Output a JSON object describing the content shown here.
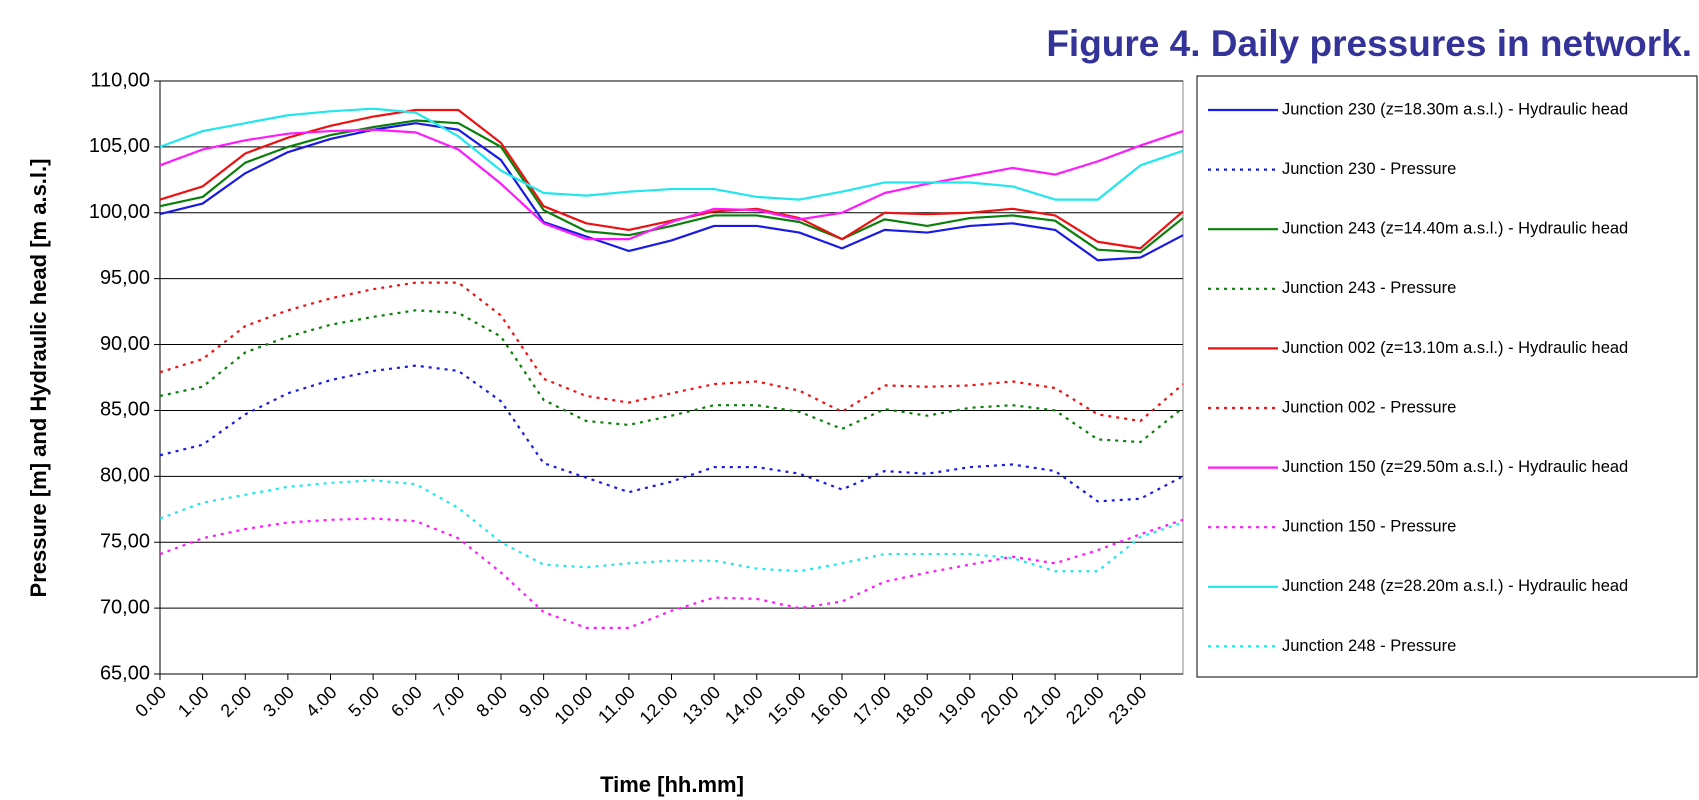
{
  "chart_data": {
    "type": "line",
    "title": "Figure 4. Daily pressures in network.",
    "x_label": "Time [hh.mm]",
    "y_label": "Pressure [m] and Hydraulic head  [m a.s.l.]",
    "x": [
      0,
      1,
      2,
      3,
      4,
      5,
      6,
      7,
      8,
      9,
      10,
      11,
      12,
      13,
      14,
      15,
      16,
      17,
      18,
      19,
      20,
      21,
      22,
      23,
      24
    ],
    "xlim": [
      0,
      24
    ],
    "xticks": [
      {
        "value": 0,
        "label": "0.00"
      },
      {
        "value": 1,
        "label": "1.00"
      },
      {
        "value": 2,
        "label": "2.00"
      },
      {
        "value": 3,
        "label": "3.00"
      },
      {
        "value": 4,
        "label": "4.00"
      },
      {
        "value": 5,
        "label": "5.00"
      },
      {
        "value": 6,
        "label": "6.00"
      },
      {
        "value": 7,
        "label": "7.00"
      },
      {
        "value": 8,
        "label": "8.00"
      },
      {
        "value": 9,
        "label": "9.00"
      },
      {
        "value": 10,
        "label": "10.00"
      },
      {
        "value": 11,
        "label": "11.00"
      },
      {
        "value": 12,
        "label": "12.00"
      },
      {
        "value": 13,
        "label": "13.00"
      },
      {
        "value": 14,
        "label": "14.00"
      },
      {
        "value": 15,
        "label": "15.00"
      },
      {
        "value": 16,
        "label": "16.00"
      },
      {
        "value": 17,
        "label": "17.00"
      },
      {
        "value": 18,
        "label": "18.00"
      },
      {
        "value": 19,
        "label": "19.00"
      },
      {
        "value": 20,
        "label": "20.00"
      },
      {
        "value": 21,
        "label": "21.00"
      },
      {
        "value": 22,
        "label": "22.00"
      },
      {
        "value": 23,
        "label": "23.00"
      }
    ],
    "ylim": [
      65,
      110
    ],
    "yticks": [
      {
        "value": 65,
        "label": "65,00"
      },
      {
        "value": 70,
        "label": "70,00"
      },
      {
        "value": 75,
        "label": "75,00"
      },
      {
        "value": 80,
        "label": "80,00"
      },
      {
        "value": 85,
        "label": "85,00"
      },
      {
        "value": 90,
        "label": "90,00"
      },
      {
        "value": 95,
        "label": "95,00"
      },
      {
        "value": 100,
        "label": "100,00"
      },
      {
        "value": 105,
        "label": "105,00"
      },
      {
        "value": 110,
        "label": "110,00"
      }
    ],
    "grid": true,
    "legend": "right",
    "series": [
      {
        "name": "Junction 230 (z=18.30m a.s.l.) - Hydraulic head",
        "color": "#1a1ae6",
        "style": "solid",
        "values": [
          99.9,
          100.7,
          103.0,
          104.6,
          105.6,
          106.3,
          106.8,
          106.3,
          104.0,
          99.3,
          98.2,
          97.1,
          97.9,
          99.0,
          99.0,
          98.5,
          97.3,
          98.7,
          98.5,
          99.0,
          99.2,
          98.7,
          96.4,
          96.6,
          98.3
        ]
      },
      {
        "name": "Junction 230 - Pressure",
        "color": "#1a1ae6",
        "style": "dotted",
        "values": [
          81.6,
          82.4,
          84.7,
          86.3,
          87.3,
          88.0,
          88.4,
          88.0,
          85.7,
          81.0,
          79.9,
          78.8,
          79.6,
          80.7,
          80.7,
          80.2,
          79.0,
          80.4,
          80.2,
          80.7,
          80.9,
          80.4,
          78.1,
          78.3,
          80.0
        ]
      },
      {
        "name": "Junction 243 (z=14.40m a.s.l.) - Hydraulic head",
        "color": "#0a800a",
        "style": "solid",
        "values": [
          100.5,
          101.2,
          103.8,
          105.0,
          105.9,
          106.5,
          107.0,
          106.8,
          105.0,
          100.2,
          98.6,
          98.3,
          99.0,
          99.8,
          99.8,
          99.3,
          98.0,
          99.5,
          99.0,
          99.6,
          99.8,
          99.4,
          97.2,
          97.0,
          99.6
        ]
      },
      {
        "name": "Junction 243 - Pressure",
        "color": "#0a800a",
        "style": "dotted",
        "values": [
          86.1,
          86.8,
          89.4,
          90.6,
          91.5,
          92.1,
          92.6,
          92.4,
          90.6,
          85.8,
          84.2,
          83.9,
          84.6,
          85.4,
          85.4,
          84.9,
          83.6,
          85.1,
          84.6,
          85.2,
          85.4,
          85.0,
          82.8,
          82.6,
          85.2
        ]
      },
      {
        "name": "Junction 002 (z=13.10m a.s.l.) - Hydraulic head",
        "color": "#ee1111",
        "style": "solid",
        "values": [
          101.0,
          102.0,
          104.5,
          105.7,
          106.6,
          107.3,
          107.8,
          107.8,
          105.3,
          100.5,
          99.2,
          98.7,
          99.4,
          100.1,
          100.3,
          99.6,
          98.0,
          100.0,
          99.9,
          100.0,
          100.3,
          99.8,
          97.8,
          97.3,
          100.1
        ]
      },
      {
        "name": "Junction 002 - Pressure",
        "color": "#ee1111",
        "style": "dotted",
        "values": [
          87.9,
          88.9,
          91.4,
          92.6,
          93.5,
          94.2,
          94.7,
          94.7,
          92.2,
          87.4,
          86.1,
          85.6,
          86.3,
          87.0,
          87.2,
          86.5,
          84.9,
          86.9,
          86.8,
          86.9,
          87.2,
          86.7,
          84.7,
          84.2,
          87.0
        ]
      },
      {
        "name": "Junction 150 (z=29.50m a.s.l.) - Hydraulic head",
        "color": "#ff19ff",
        "style": "solid",
        "values": [
          103.6,
          104.8,
          105.5,
          106.0,
          106.2,
          106.3,
          106.1,
          104.8,
          102.2,
          99.2,
          98.0,
          98.0,
          99.3,
          100.3,
          100.2,
          99.5,
          100.0,
          101.5,
          102.2,
          102.8,
          103.4,
          102.9,
          103.9,
          105.1,
          106.2
        ]
      },
      {
        "name": "Junction 150 - Pressure",
        "color": "#ff19ff",
        "style": "dotted",
        "values": [
          74.1,
          75.3,
          76.0,
          76.5,
          76.7,
          76.8,
          76.6,
          75.3,
          72.7,
          69.7,
          68.5,
          68.5,
          69.8,
          70.8,
          70.7,
          70.0,
          70.5,
          72.0,
          72.7,
          73.3,
          73.9,
          73.4,
          74.4,
          75.6,
          76.7
        ]
      },
      {
        "name": "Junction 248 (z=28.20m a.s.l.) - Hydraulic head",
        "color": "#22e6ee",
        "style": "solid",
        "values": [
          105.0,
          106.2,
          106.8,
          107.4,
          107.7,
          107.9,
          107.6,
          105.8,
          103.2,
          101.5,
          101.3,
          101.6,
          101.8,
          101.8,
          101.2,
          101.0,
          101.6,
          102.3,
          102.3,
          102.3,
          102.0,
          101.0,
          101.0,
          103.6,
          104.7
        ]
      },
      {
        "name": "Junction 248 - Pressure",
        "color": "#22e6ee",
        "style": "dotted",
        "values": [
          76.8,
          78.0,
          78.6,
          79.2,
          79.5,
          79.7,
          79.4,
          77.6,
          75.0,
          73.3,
          73.1,
          73.4,
          73.6,
          73.6,
          73.0,
          72.8,
          73.4,
          74.1,
          74.1,
          74.1,
          73.8,
          72.8,
          72.8,
          75.4,
          76.5
        ]
      }
    ]
  }
}
